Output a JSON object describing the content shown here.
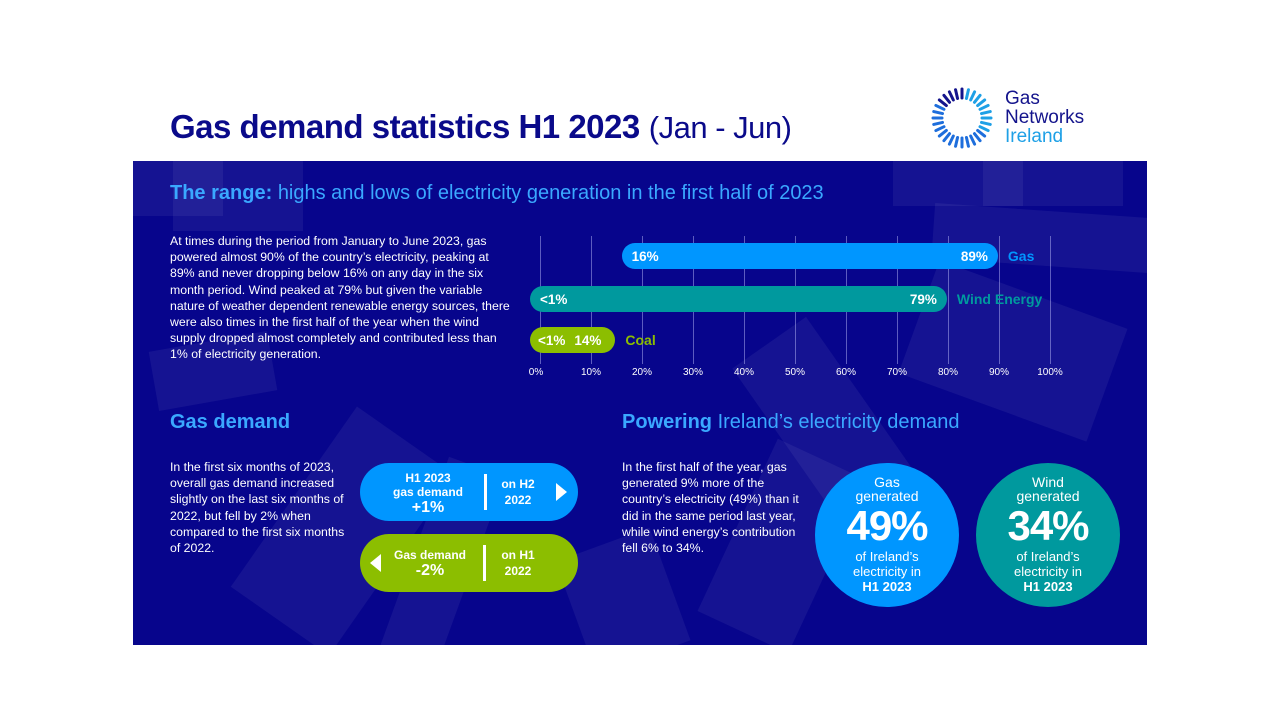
{
  "header": {
    "title_bold": "Gas demand statistics H1 2023",
    "title_light": "(Jan - Jun)",
    "logo": {
      "icon": "radial-dashes-ring-icon",
      "line1": "Gas",
      "line2": "Networks",
      "line3": "Ireland"
    }
  },
  "range_section": {
    "heading_bold": "The range:",
    "heading_light": "highs and lows of electricity generation in the first half of 2023",
    "paragraph": "At times during the period from January to June 2023, gas powered almost 90% of the country’s electricity, peaking at 89% and never dropping below 16% on any day in the six month period. Wind peaked at 79% but given the variable nature of weather dependent renewable energy sources, there were also times in the first half of the year when the wind supply dropped almost completely and contributed less than 1% of electricity generation."
  },
  "chart_data": {
    "type": "bar",
    "orientation": "horizontal-range",
    "title": "highs and lows of electricity generation in the first half of 2023",
    "xlabel": "",
    "ylabel": "",
    "xlim": [
      0,
      100
    ],
    "x_ticks": [
      "0%",
      "10%",
      "20%",
      "30%",
      "40%",
      "50%",
      "60%",
      "70%",
      "80%",
      "90%",
      "100%"
    ],
    "grid": true,
    "categories": [
      "Gas",
      "Wind Energy",
      "Coal"
    ],
    "series": [
      {
        "name": "Gas",
        "min": 16,
        "max": 89,
        "min_label": "16%",
        "max_label": "89%",
        "color": "#0096ff"
      },
      {
        "name": "Wind Energy",
        "min": 0.5,
        "max": 79,
        "min_label": "<1%",
        "max_label": "79%",
        "color": "#00999e"
      },
      {
        "name": "Coal",
        "min": 0.5,
        "max": 14,
        "min_label": "<1%",
        "max_label": "14%",
        "color": "#8cbe00"
      }
    ]
  },
  "gas_demand": {
    "heading": "Gas demand",
    "paragraph": "In the first six months of 2023, overall gas demand increased slightly on the last six months of 2022, but fell by 2% when compared to the first six months of 2022.",
    "pill_up": {
      "line1": "H1 2023",
      "line2": "gas demand",
      "value": "+1%",
      "side1": "on H2",
      "side2": "2022",
      "color": "#0096ff"
    },
    "pill_down": {
      "line1": "Gas demand",
      "value": "-2%",
      "side1": "on H1",
      "side2": "2022",
      "color": "#8cbe00"
    }
  },
  "powering": {
    "heading_bold": "Powering",
    "heading_light": "Ireland’s electricity demand",
    "paragraph": "In the first half of the year, gas generated 9% more of the country’s electricity (49%) than it did in the same period last year, while wind energy’s contribution fell  6% to 34%.",
    "circles": [
      {
        "top1": "Gas",
        "top2": "generated",
        "value": "49%",
        "bot1": "of Ireland’s",
        "bot2": "electricity in",
        "bot3": "H1 2023",
        "color": "#0096ff"
      },
      {
        "top1": "Wind",
        "top2": "generated",
        "value": "34%",
        "bot1": "of Ireland’s",
        "bot2": "electricity in",
        "bot3": "H1 2023",
        "color": "#00999e"
      }
    ]
  },
  "colors": {
    "navy_panel": "#07058c",
    "title_navy": "#0a0a8a",
    "accent_blue": "#3aa8ff",
    "gas_blue": "#0096ff",
    "wind_teal": "#00999e",
    "coal_green": "#8cbe00"
  }
}
